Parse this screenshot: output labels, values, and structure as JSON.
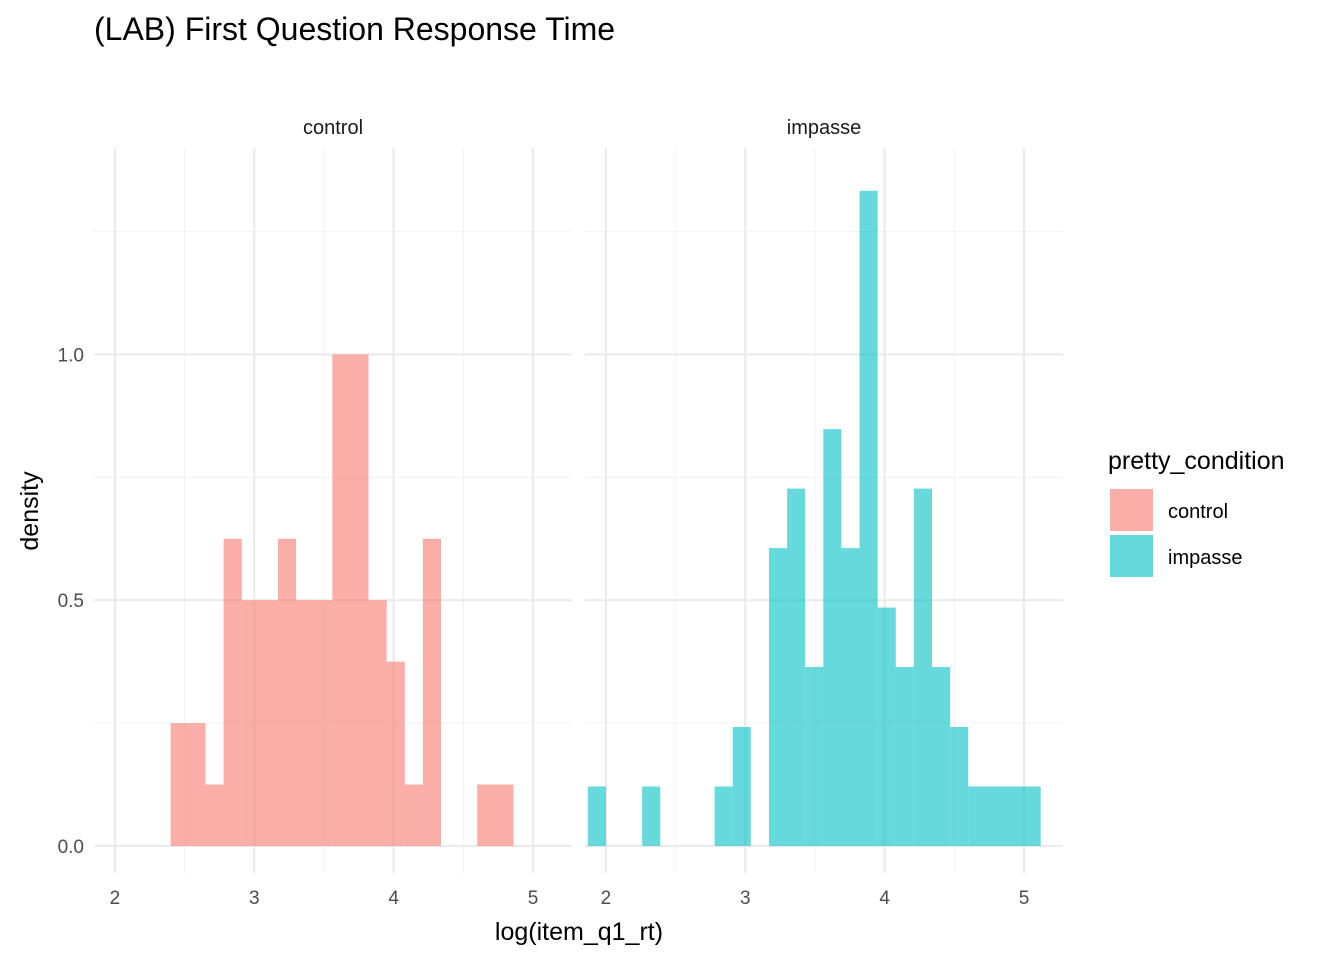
{
  "chart_data": {
    "type": "bar",
    "title": "(LAB) First Question Response Time",
    "xlabel": "log(item_q1_rt)",
    "ylabel": "density",
    "xlim": [
      1.85,
      5.28
    ],
    "ylim": [
      -0.055,
      1.42
    ],
    "x_ticks": [
      "2",
      "3",
      "4",
      "5"
    ],
    "x_tick_values": [
      2,
      3,
      4,
      5
    ],
    "y_ticks": [
      "0.0",
      "0.5",
      "1.0"
    ],
    "y_tick_values": [
      0,
      0.5,
      1.0
    ],
    "grid": true,
    "legend": {
      "title": "pretty_condition",
      "position": "right",
      "entries": [
        {
          "label": "control",
          "color": "#F8766D"
        },
        {
          "label": "impasse",
          "color": "#00BFC4"
        }
      ]
    },
    "bar_opacity": 0.6,
    "panels": [
      {
        "name": "control",
        "color": "#F8766D",
        "bars": [
          {
            "x0": 2.4,
            "x1": 2.65,
            "y": 0.25
          },
          {
            "x0": 2.65,
            "x1": 2.78,
            "y": 0.125
          },
          {
            "x0": 2.78,
            "x1": 2.91,
            "y": 0.625
          },
          {
            "x0": 2.91,
            "x1": 3.17,
            "y": 0.5
          },
          {
            "x0": 3.17,
            "x1": 3.3,
            "y": 0.625
          },
          {
            "x0": 3.3,
            "x1": 3.56,
            "y": 0.5
          },
          {
            "x0": 3.56,
            "x1": 3.82,
            "y": 1.0
          },
          {
            "x0": 3.82,
            "x1": 3.95,
            "y": 0.5
          },
          {
            "x0": 3.95,
            "x1": 4.08,
            "y": 0.375
          },
          {
            "x0": 4.08,
            "x1": 4.21,
            "y": 0.125
          },
          {
            "x0": 4.21,
            "x1": 4.34,
            "y": 0.625
          },
          {
            "x0": 4.6,
            "x1": 4.86,
            "y": 0.125
          }
        ]
      },
      {
        "name": "impasse",
        "color": "#00BFC4",
        "bars": [
          {
            "x0": 1.87,
            "x1": 2.0,
            "y": 0.121
          },
          {
            "x0": 2.26,
            "x1": 2.39,
            "y": 0.121
          },
          {
            "x0": 2.78,
            "x1": 2.91,
            "y": 0.121
          },
          {
            "x0": 2.91,
            "x1": 3.04,
            "y": 0.242
          },
          {
            "x0": 3.17,
            "x1": 3.3,
            "y": 0.606
          },
          {
            "x0": 3.3,
            "x1": 3.43,
            "y": 0.727
          },
          {
            "x0": 3.43,
            "x1": 3.56,
            "y": 0.364
          },
          {
            "x0": 3.56,
            "x1": 3.69,
            "y": 0.848
          },
          {
            "x0": 3.69,
            "x1": 3.82,
            "y": 0.606
          },
          {
            "x0": 3.82,
            "x1": 3.95,
            "y": 1.333
          },
          {
            "x0": 3.95,
            "x1": 4.08,
            "y": 0.485
          },
          {
            "x0": 4.08,
            "x1": 4.21,
            "y": 0.364
          },
          {
            "x0": 4.21,
            "x1": 4.34,
            "y": 0.727
          },
          {
            "x0": 4.34,
            "x1": 4.47,
            "y": 0.364
          },
          {
            "x0": 4.47,
            "x1": 4.6,
            "y": 0.242
          },
          {
            "x0": 4.6,
            "x1": 5.12,
            "y": 0.121
          }
        ]
      }
    ]
  }
}
